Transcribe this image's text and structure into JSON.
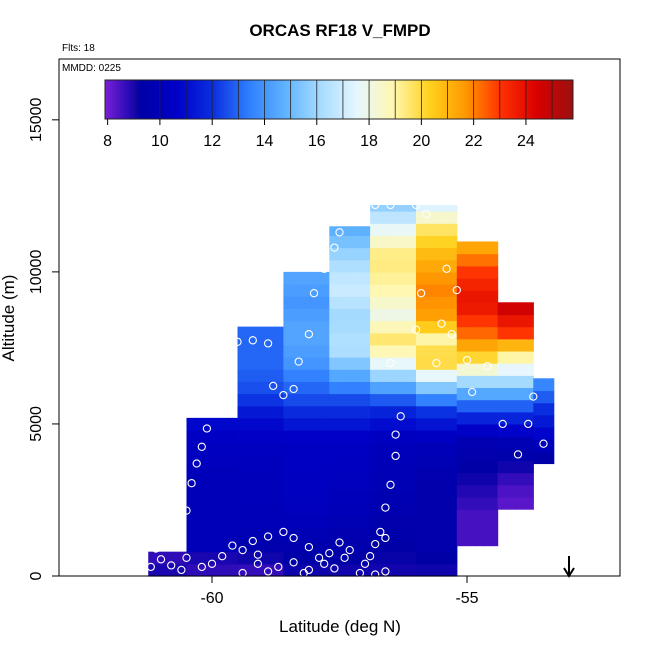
{
  "chart_data": {
    "type": "heatmap",
    "title": "ORCAS RF18 V_FMPD",
    "annotations": {
      "flts": "Flts: 18",
      "mmdd": "MMDD: 0225"
    },
    "xlabel": "Latitude (deg N)",
    "ylabel": "Altitude (m)",
    "xlim": [
      -63.0,
      -52.0
    ],
    "ylim": [
      0,
      17000
    ],
    "x_ticks": [
      -60,
      -55
    ],
    "y_ticks": [
      0,
      5000,
      10000,
      15000
    ],
    "colorbar": {
      "min": 7.9,
      "max": 25.8,
      "ticks": [
        8,
        10,
        12,
        14,
        16,
        18,
        20,
        22,
        24
      ]
    },
    "colormap": [
      "#7a1fd6",
      "#0000a6",
      "#0000c8",
      "#0a2fe0",
      "#2f7fff",
      "#5fb3ff",
      "#a8dcff",
      "#e6f7ff",
      "#fff7b0",
      "#ffd21f",
      "#ff9a00",
      "#ff3000",
      "#d80000",
      "#9c1010"
    ],
    "cell_size": {
      "lat": 0.18,
      "alt": 400
    },
    "columns": [
      {
        "lat_start": -61.25,
        "lat_end": -60.5,
        "alt_top": 800,
        "profile": [
          [
            0,
            8.5
          ],
          [
            200,
            9.0
          ],
          [
            400,
            8.0
          ],
          [
            800,
            9.5
          ]
        ]
      },
      {
        "lat_start": -60.5,
        "lat_end": -59.5,
        "alt_top": 5200,
        "profile": [
          [
            0,
            9.0
          ],
          [
            400,
            8.5
          ],
          [
            1000,
            10.0
          ],
          [
            3000,
            10.0
          ],
          [
            4600,
            10.5
          ],
          [
            5200,
            11.0
          ]
        ]
      },
      {
        "lat_start": -59.5,
        "lat_end": -58.6,
        "alt_top": 8200,
        "profile": [
          [
            0,
            8.5
          ],
          [
            1500,
            10.0
          ],
          [
            4000,
            10.2
          ],
          [
            5200,
            11.0
          ],
          [
            6000,
            12.5
          ],
          [
            7000,
            13.0
          ],
          [
            8200,
            13.0
          ]
        ]
      },
      {
        "lat_start": -58.6,
        "lat_end": -57.7,
        "alt_top": 10000,
        "profile": [
          [
            0,
            9.0
          ],
          [
            2000,
            10.2
          ],
          [
            4500,
            10.5
          ],
          [
            5800,
            12.5
          ],
          [
            7000,
            14.0
          ],
          [
            8000,
            14.5
          ],
          [
            9000,
            14.0
          ],
          [
            10000,
            14.5
          ]
        ]
      },
      {
        "lat_start": -57.7,
        "lat_end": -56.9,
        "alt_top": 11500,
        "profile": [
          [
            0,
            9.0
          ],
          [
            2000,
            10.0
          ],
          [
            4500,
            10.5
          ],
          [
            5800,
            12.5
          ],
          [
            6800,
            15.0
          ],
          [
            7500,
            16.5
          ],
          [
            8500,
            16.0
          ],
          [
            9500,
            17.0
          ],
          [
            10500,
            16.0
          ],
          [
            11500,
            14.5
          ]
        ]
      },
      {
        "lat_start": -56.9,
        "lat_end": -56.0,
        "alt_top": 12200,
        "profile": [
          [
            0,
            9.0
          ],
          [
            2500,
            9.8
          ],
          [
            4500,
            10.2
          ],
          [
            5600,
            12.0
          ],
          [
            6500,
            15.5
          ],
          [
            7200,
            18.5
          ],
          [
            7800,
            19.5
          ],
          [
            8600,
            18.0
          ],
          [
            9500,
            19.0
          ],
          [
            10500,
            19.5
          ],
          [
            11500,
            17.5
          ],
          [
            12200,
            15.5
          ]
        ]
      },
      {
        "lat_start": -56.0,
        "lat_end": -55.2,
        "alt_top": 12200,
        "profile": [
          [
            0,
            9.0
          ],
          [
            1000,
            9.5
          ],
          [
            3000,
            9.5
          ],
          [
            4500,
            10.2
          ],
          [
            5600,
            12.5
          ],
          [
            6500,
            17.0
          ],
          [
            7100,
            20.5
          ],
          [
            7800,
            19.0
          ],
          [
            8500,
            21.5
          ],
          [
            9500,
            22.0
          ],
          [
            10500,
            21.0
          ],
          [
            11500,
            19.5
          ],
          [
            12200,
            17.0
          ]
        ]
      },
      {
        "lat_start": -55.2,
        "lat_end": -54.4,
        "alt_top": 11000,
        "profile": [
          [
            1000,
            8.5
          ],
          [
            2000,
            8.5
          ],
          [
            3000,
            9.0
          ],
          [
            4500,
            9.8
          ],
          [
            5500,
            12.5
          ],
          [
            6500,
            16.5
          ],
          [
            7000,
            19.5
          ],
          [
            7800,
            22.0
          ],
          [
            9000,
            24.0
          ],
          [
            10000,
            23.0
          ],
          [
            11000,
            21.0
          ]
        ]
      },
      {
        "lat_start": -54.4,
        "lat_end": -53.7,
        "alt_top": 9000,
        "profile": [
          [
            2200,
            8.2
          ],
          [
            3000,
            8.5
          ],
          [
            4500,
            10.0
          ],
          [
            5500,
            12.5
          ],
          [
            6500,
            16.5
          ],
          [
            7200,
            19.0
          ],
          [
            8000,
            23.0
          ],
          [
            9000,
            25.0
          ]
        ]
      },
      {
        "lat_start": -53.7,
        "lat_end": -53.3,
        "alt_top": 6500,
        "profile": [
          [
            3700,
            9.0
          ],
          [
            4500,
            10.5
          ],
          [
            5500,
            12.0
          ],
          [
            6500,
            14.0
          ]
        ]
      }
    ],
    "obs_points": [
      [
        -61.2,
        300
      ],
      [
        -61.0,
        550
      ],
      [
        -60.8,
        350
      ],
      [
        -60.6,
        200
      ],
      [
        -61.1,
        900
      ],
      [
        -60.9,
        1300
      ],
      [
        -60.7,
        1650
      ],
      [
        -60.5,
        2150
      ],
      [
        -60.6,
        1250
      ],
      [
        -60.4,
        3050
      ],
      [
        -60.3,
        3700
      ],
      [
        -60.2,
        4250
      ],
      [
        -60.1,
        4850
      ],
      [
        -60.0,
        5400
      ],
      [
        -59.9,
        6050
      ],
      [
        -59.8,
        6600
      ],
      [
        -59.7,
        7100
      ],
      [
        -59.5,
        7700
      ],
      [
        -59.2,
        7750
      ],
      [
        -58.9,
        7650
      ],
      [
        -58.8,
        6250
      ],
      [
        -58.6,
        5950
      ],
      [
        -58.4,
        6150
      ],
      [
        -58.3,
        7050
      ],
      [
        -58.1,
        7950
      ],
      [
        -58.0,
        9300
      ],
      [
        -57.8,
        10100
      ],
      [
        -57.6,
        10800
      ],
      [
        -57.5,
        11300
      ],
      [
        -57.3,
        11900
      ],
      [
        -57.1,
        12200
      ],
      [
        -56.8,
        12200
      ],
      [
        -56.5,
        12200
      ],
      [
        -56.0,
        12200
      ],
      [
        -55.8,
        11900
      ],
      [
        -55.4,
        10100
      ],
      [
        -55.2,
        9400
      ],
      [
        -55.9,
        9300
      ],
      [
        -56.0,
        8100
      ],
      [
        -55.5,
        8300
      ],
      [
        -55.3,
        7950
      ],
      [
        -55.6,
        7000
      ],
      [
        -55.0,
        7100
      ],
      [
        -54.6,
        6900
      ],
      [
        -54.9,
        6050
      ],
      [
        -54.3,
        5000
      ],
      [
        -53.7,
        5900
      ],
      [
        -53.8,
        5000
      ],
      [
        -54.0,
        4000
      ],
      [
        -53.5,
        4350
      ],
      [
        -56.5,
        7000
      ],
      [
        -56.3,
        5250
      ],
      [
        -56.4,
        4650
      ],
      [
        -56.4,
        3950
      ],
      [
        -56.5,
        3000
      ],
      [
        -56.6,
        2250
      ],
      [
        -56.7,
        1450
      ],
      [
        -56.6,
        1250
      ],
      [
        -56.8,
        1050
      ],
      [
        -56.9,
        650
      ],
      [
        -57.0,
        400
      ],
      [
        -57.1,
        100
      ],
      [
        -56.8,
        50
      ],
      [
        -56.6,
        150
      ],
      [
        -57.3,
        850
      ],
      [
        -57.5,
        1100
      ],
      [
        -57.7,
        750
      ],
      [
        -57.9,
        600
      ],
      [
        -58.1,
        950
      ],
      [
        -58.4,
        1250
      ],
      [
        -58.6,
        1450
      ],
      [
        -58.9,
        1300
      ],
      [
        -59.2,
        1150
      ],
      [
        -59.4,
        850
      ],
      [
        -59.6,
        1000
      ],
      [
        -59.8,
        650
      ],
      [
        -60.0,
        400
      ],
      [
        -60.2,
        300
      ],
      [
        -60.5,
        600
      ],
      [
        -59.1,
        400
      ],
      [
        -58.9,
        150
      ],
      [
        -58.7,
        300
      ],
      [
        -58.4,
        450
      ],
      [
        -58.1,
        200
      ],
      [
        -57.8,
        400
      ],
      [
        -57.6,
        250
      ],
      [
        -57.4,
        600
      ],
      [
        -59.4,
        100
      ],
      [
        -59.1,
        700
      ],
      [
        -58.2,
        100
      ]
    ],
    "arrow_latitude": -53.0
  }
}
